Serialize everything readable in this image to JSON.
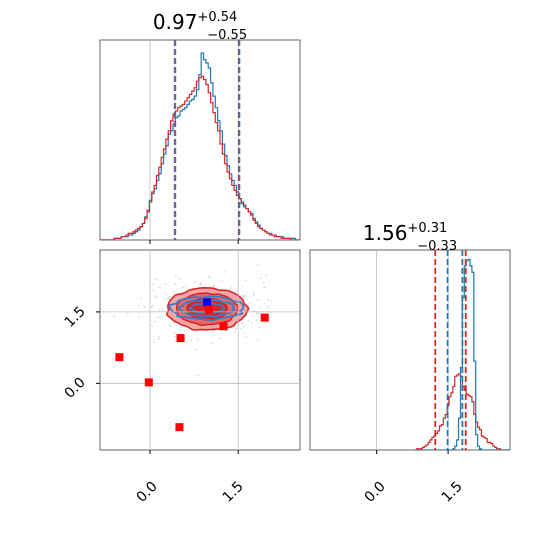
{
  "chart_data": [
    {
      "type": "histogram",
      "panel": "marginal-p1",
      "title": {
        "value": "0.97",
        "upper": "+0.54",
        "lower": "−0.55"
      },
      "xlim": [
        -0.85,
        2.55
      ],
      "bin_edges_start": -0.85,
      "bin_width": 0.04,
      "series": [
        {
          "color": "#1f77b4",
          "values": [
            0,
            0,
            0,
            0,
            0,
            0,
            1,
            1,
            1,
            2,
            2,
            2,
            3,
            3,
            4,
            5,
            6,
            8,
            10,
            14,
            18,
            24,
            28,
            31,
            36,
            40,
            46,
            52,
            57,
            64,
            66,
            70,
            74,
            75,
            78,
            79,
            80,
            82,
            84,
            85,
            87,
            91,
            100,
            113,
            109,
            107,
            104,
            95,
            87,
            80,
            72,
            66,
            58,
            51,
            45,
            40,
            36,
            33,
            29,
            25,
            22,
            20,
            19,
            17,
            16,
            13,
            11,
            9,
            7,
            6,
            5,
            4,
            4,
            3,
            3,
            2,
            2,
            2,
            1,
            1,
            1,
            1,
            1,
            0,
            0
          ]
        },
        {
          "color": "#d62728",
          "values": [
            0,
            0,
            0,
            0,
            0,
            0,
            1,
            1,
            1,
            2,
            2,
            3,
            4,
            4,
            5,
            6,
            7,
            8,
            10,
            13,
            17,
            23,
            29,
            33,
            39,
            44,
            50,
            55,
            61,
            66,
            72,
            76,
            78,
            80,
            81,
            82,
            84,
            86,
            88,
            90,
            92,
            96,
            98,
            99,
            97,
            94,
            89,
            83,
            77,
            71,
            66,
            58,
            52,
            46,
            41,
            37,
            33,
            30,
            27,
            25,
            23,
            21,
            19,
            17,
            15,
            12,
            10,
            8,
            7,
            6,
            5,
            4,
            3,
            3,
            2,
            2,
            2,
            1,
            1,
            1,
            1,
            0,
            0,
            0,
            0
          ]
        }
      ],
      "quantile_lines": [
        {
          "x": 0.42,
          "color": "#d62728"
        },
        {
          "x": 0.43,
          "color": "#1f77b4"
        },
        {
          "x": 1.51,
          "color": "#d62728"
        },
        {
          "x": 1.52,
          "color": "#1f77b4"
        }
      ],
      "truth_line": 0.0
    },
    {
      "type": "histogram",
      "panel": "marginal-p2",
      "title": {
        "value": "1.56",
        "upper": "+0.31",
        "lower": "−0.33"
      },
      "xlim": [
        -1.4,
        2.8
      ],
      "xticks": [
        "0.0",
        "1.5"
      ],
      "bin_edges_start": 0.8,
      "bin_width": 0.04,
      "series": [
        {
          "color": "#d62728",
          "values": [
            0,
            1,
            1,
            1,
            2,
            3,
            4,
            6,
            8,
            10,
            11,
            13,
            15,
            19,
            20,
            25,
            28,
            35,
            42,
            45,
            50,
            58,
            59,
            60,
            58,
            50,
            47,
            44,
            43,
            42,
            38,
            28,
            22,
            18,
            16,
            11,
            10,
            9,
            6,
            6,
            5,
            3,
            2,
            1,
            1,
            0,
            0,
            0,
            0,
            0,
            0
          ]
        },
        {
          "color": "#1f77b4",
          "values": [
            0,
            0,
            0,
            0,
            0,
            0,
            0,
            0,
            0,
            0,
            0,
            0,
            0,
            0,
            0,
            0,
            0,
            0,
            0,
            0,
            1,
            3,
            8,
            25,
            65,
            120,
            145,
            149,
            150,
            145,
            140,
            70,
            12,
            3,
            1,
            0,
            0,
            0,
            0,
            0,
            0,
            0,
            0,
            0,
            0,
            0,
            0,
            0,
            0,
            0,
            0
          ]
        }
      ],
      "quantile_lines": [
        {
          "x": 1.23,
          "color": "#d62728"
        },
        {
          "x": 1.49,
          "color": "#1f77b4"
        },
        {
          "x": 1.8,
          "color": "#1f77b4"
        },
        {
          "x": 1.87,
          "color": "#d62728"
        }
      ],
      "truth_line": 0.0
    },
    {
      "type": "contour",
      "panel": "joint-p1-p2",
      "xlim": [
        -0.85,
        2.55
      ],
      "ylim": [
        -1.4,
        2.8
      ],
      "xticks": [
        "0.0",
        "1.5"
      ],
      "yticks": [
        "0.0",
        "1.5"
      ],
      "red_contours": {
        "center": [
          0.97,
          1.56
        ],
        "levels": [
          {
            "rx": 0.68,
            "ry": 0.44,
            "fill": "#f4a6a6"
          },
          {
            "rx": 0.52,
            "ry": 0.33,
            "fill": "#e66a6a"
          },
          {
            "rx": 0.34,
            "ry": 0.22,
            "fill": "#d62728"
          }
        ],
        "line_color": "#d62728"
      },
      "blue_contours": {
        "center": [
          0.97,
          1.58
        ],
        "levels": [
          {
            "rx": 0.62,
            "ry": 0.24
          },
          {
            "rx": 0.46,
            "ry": 0.17
          },
          {
            "rx": 0.28,
            "ry": 0.1
          }
        ],
        "line_color": "#3a7bc8"
      },
      "square_markers": [
        {
          "x": 0.97,
          "y": 1.7,
          "color": "#0000ff"
        },
        {
          "x": 1.0,
          "y": 1.55,
          "color": "#ff0000"
        },
        {
          "x": 1.25,
          "y": 1.2,
          "color": "#ff0000"
        },
        {
          "x": 1.95,
          "y": 1.38,
          "color": "#ff0000"
        },
        {
          "x": 0.52,
          "y": 0.95,
          "color": "#ff0000"
        },
        {
          "x": -0.52,
          "y": 0.55,
          "color": "#ff0000"
        },
        {
          "x": -0.02,
          "y": 0.02,
          "color": "#ff0000"
        },
        {
          "x": 0.5,
          "y": -0.92,
          "color": "#ff0000"
        }
      ],
      "truth_lines": {
        "x": 1.5,
        "y": 1.5,
        "x0": 0.0,
        "y0": 0.0
      }
    }
  ]
}
